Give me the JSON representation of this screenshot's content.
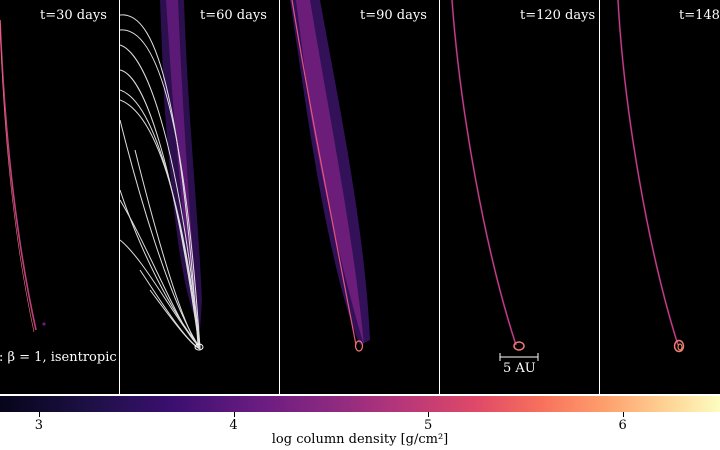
{
  "panels": [
    {
      "title": "t=30 days"
    },
    {
      "title": "t=60 days"
    },
    {
      "title": "t=90 days"
    },
    {
      "title": "t=120 days",
      "scale_label": "5 AU"
    },
    {
      "title": "t=148 d"
    }
  ],
  "panel_caption": ": β = 1, isentropic",
  "colorbar": {
    "label": "log column density [g/cm²]",
    "ticks": [
      "3",
      "4",
      "5",
      "6"
    ],
    "colormap": "magma",
    "range": [
      2.8,
      6.5
    ]
  }
}
